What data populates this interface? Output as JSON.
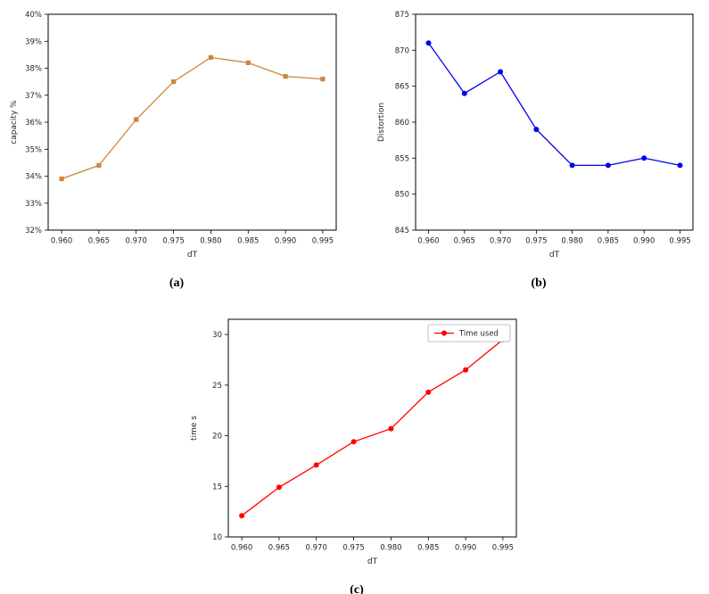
{
  "page": {
    "background": "#ffffff"
  },
  "captions": {
    "a": "(a)",
    "b": "(b)",
    "c": "(c)"
  },
  "chart_data": [
    {
      "type": "line",
      "panel": "a",
      "title": "",
      "xlabel": "dT",
      "ylabel": "capacity %",
      "color": "#CD853F",
      "marker": "square",
      "grid": false,
      "x": [
        0.96,
        0.965,
        0.97,
        0.975,
        0.98,
        0.985,
        0.99,
        0.995
      ],
      "values": [
        33.9,
        34.4,
        36.1,
        37.5,
        38.4,
        38.2,
        37.7,
        37.6
      ],
      "xlim": [
        0.9582,
        0.9968
      ],
      "ylim": [
        32,
        40
      ],
      "xticks": [
        0.96,
        0.965,
        0.97,
        0.975,
        0.98,
        0.985,
        0.99,
        0.995
      ],
      "xtick_labels": [
        "0.960",
        "0.965",
        "0.970",
        "0.975",
        "0.980",
        "0.985",
        "0.990",
        "0.995"
      ],
      "yticks": [
        32,
        33,
        34,
        35,
        36,
        37,
        38,
        39,
        40
      ],
      "ytick_labels": [
        "32%",
        "33%",
        "34%",
        "35%",
        "36%",
        "37%",
        "38%",
        "39%",
        "40%"
      ],
      "legend": null,
      "legend_position": null
    },
    {
      "type": "line",
      "panel": "b",
      "title": "",
      "xlabel": "dT",
      "ylabel": "Distortion",
      "color": "#0000EE",
      "marker": "circle",
      "grid": false,
      "x": [
        0.96,
        0.965,
        0.97,
        0.975,
        0.98,
        0.985,
        0.99,
        0.995
      ],
      "values": [
        871,
        864,
        867,
        859,
        854,
        854,
        855,
        854
      ],
      "xlim": [
        0.9582,
        0.9968
      ],
      "ylim": [
        845,
        875
      ],
      "xticks": [
        0.96,
        0.965,
        0.97,
        0.975,
        0.98,
        0.985,
        0.99,
        0.995
      ],
      "xtick_labels": [
        "0.960",
        "0.965",
        "0.970",
        "0.975",
        "0.980",
        "0.985",
        "0.990",
        "0.995"
      ],
      "yticks": [
        845,
        850,
        855,
        860,
        865,
        870,
        875
      ],
      "ytick_labels": [
        "845",
        "850",
        "855",
        "860",
        "865",
        "870",
        "875"
      ],
      "legend": null,
      "legend_position": null
    },
    {
      "type": "line",
      "panel": "c",
      "title": "",
      "xlabel": "dT",
      "ylabel": "time s",
      "color": "#FF0000",
      "marker": "circle",
      "grid": false,
      "x": [
        0.96,
        0.965,
        0.97,
        0.975,
        0.98,
        0.985,
        0.99,
        0.995
      ],
      "values": [
        12.1,
        14.9,
        17.1,
        19.4,
        20.7,
        24.3,
        26.5,
        29.5
      ],
      "xlim": [
        0.9582,
        0.9968
      ],
      "ylim": [
        10,
        31.5
      ],
      "xticks": [
        0.96,
        0.965,
        0.97,
        0.975,
        0.98,
        0.985,
        0.99,
        0.995
      ],
      "xtick_labels": [
        "0.960",
        "0.965",
        "0.970",
        "0.975",
        "0.980",
        "0.985",
        "0.990",
        "0.995"
      ],
      "yticks": [
        10,
        15,
        20,
        25,
        30
      ],
      "ytick_labels": [
        "10",
        "15",
        "20",
        "25",
        "30"
      ],
      "legend": "Time used",
      "legend_position": "upper right"
    }
  ]
}
